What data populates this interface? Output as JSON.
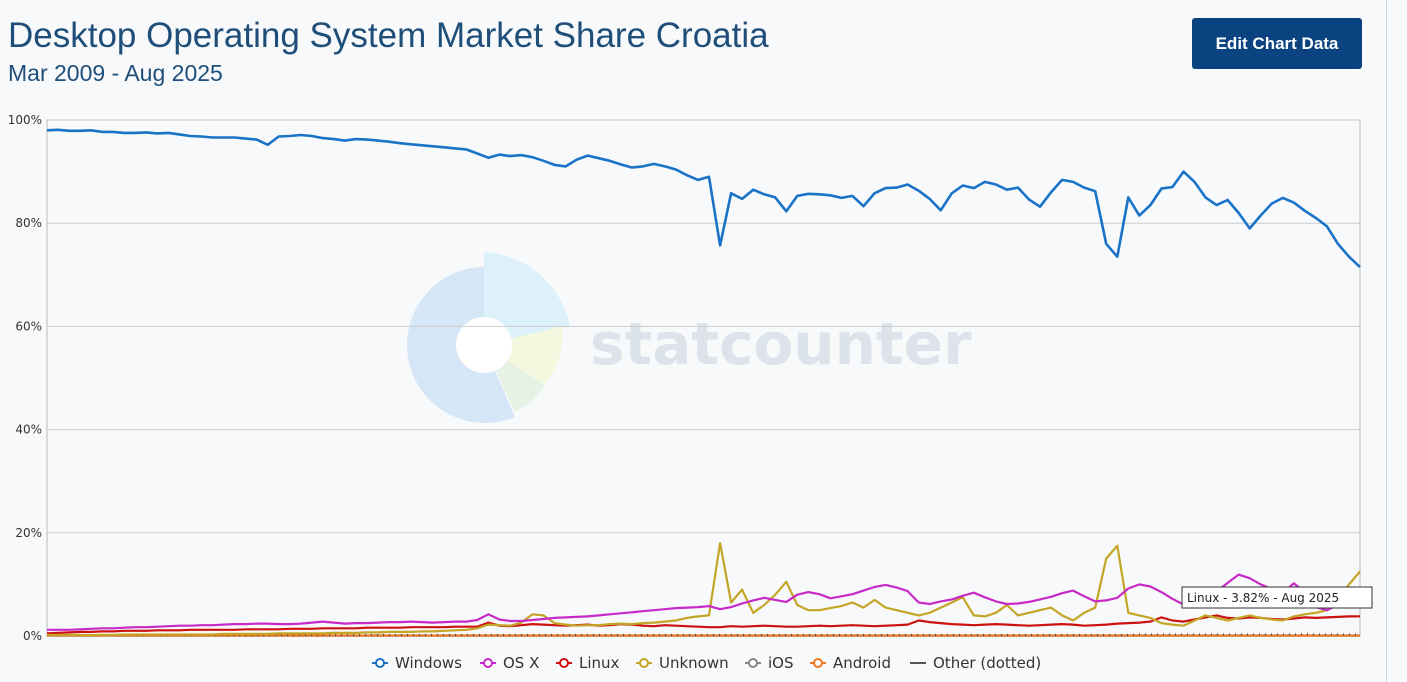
{
  "header": {
    "title": "Desktop Operating System Market Share Croatia",
    "subtitle": "Mar 2009 - Aug 2025",
    "edit_button": "Edit Chart Data"
  },
  "watermark": {
    "text": "statcounter"
  },
  "tooltip": {
    "text": "Linux - 3.82% - Aug 2025"
  },
  "colors": {
    "Windows": "#1a73c6",
    "OS X": "#c72ac7",
    "Linux": "#cc1111",
    "Unknown": "#c4a526",
    "iOS": "#888888",
    "Android": "#ee7722",
    "Other": "#555555"
  },
  "chart_data": {
    "type": "line",
    "title": "Desktop Operating System Market Share Croatia",
    "subtitle": "Mar 2009 - Aug 2025",
    "x_range": [
      "Mar 2009",
      "Aug 2025"
    ],
    "ylim": [
      0,
      100
    ],
    "yticks": [
      "0%",
      "20%",
      "40%",
      "60%",
      "80%",
      "100%"
    ],
    "grid": true,
    "legend_position": "bottom",
    "series": [
      {
        "name": "Windows",
        "values": [
          98.0,
          98.1,
          97.9,
          97.9,
          98.0,
          97.7,
          97.7,
          97.5,
          97.5,
          97.6,
          97.4,
          97.5,
          97.2,
          96.9,
          96.8,
          96.6,
          96.6,
          96.6,
          96.4,
          96.2,
          95.2,
          96.8,
          96.9,
          97.1,
          96.9,
          96.5,
          96.3,
          96.0,
          96.3,
          96.2,
          96.0,
          95.8,
          95.5,
          95.3,
          95.1,
          94.9,
          94.7,
          94.5,
          94.3,
          93.5,
          92.7,
          93.3,
          93.0,
          93.2,
          92.8,
          92.1,
          91.3,
          91.0,
          92.3,
          93.1,
          92.6,
          92.1,
          91.4,
          90.8,
          91.0,
          91.5,
          91.0,
          90.4,
          89.3,
          88.4,
          89.0,
          75.7,
          85.8,
          84.7,
          86.5,
          85.6,
          85.0,
          82.3,
          85.3,
          85.7,
          85.6,
          85.4,
          84.9,
          85.3,
          83.3,
          85.8,
          86.8,
          86.9,
          87.5,
          86.3,
          84.7,
          82.5,
          85.8,
          87.3,
          86.8,
          88.0,
          87.5,
          86.5,
          86.9,
          84.6,
          83.2,
          86.0,
          88.4,
          88.0,
          86.9,
          86.2,
          76.0,
          73.5,
          85.0,
          81.5,
          83.5,
          86.7,
          87.0,
          90.0,
          88.0,
          85.0,
          83.5,
          84.5,
          82.0,
          79.0,
          81.5,
          83.8,
          84.9,
          84.0,
          82.4,
          81.0,
          79.4,
          76.0,
          73.5,
          71.5
        ]
      },
      {
        "name": "OS X",
        "values": [
          1.2,
          1.2,
          1.2,
          1.3,
          1.4,
          1.5,
          1.5,
          1.6,
          1.7,
          1.7,
          1.8,
          1.9,
          2.0,
          2.0,
          2.1,
          2.1,
          2.2,
          2.3,
          2.3,
          2.4,
          2.4,
          2.3,
          2.3,
          2.4,
          2.6,
          2.8,
          2.6,
          2.4,
          2.5,
          2.5,
          2.6,
          2.7,
          2.7,
          2.8,
          2.7,
          2.6,
          2.7,
          2.8,
          2.8,
          3.1,
          4.2,
          3.2,
          2.9,
          2.9,
          3.1,
          3.3,
          3.5,
          3.6,
          3.7,
          3.8,
          4.0,
          4.2,
          4.4,
          4.6,
          4.8,
          5.0,
          5.2,
          5.4,
          5.5,
          5.6,
          5.8,
          5.2,
          5.6,
          6.3,
          6.9,
          7.4,
          7.0,
          6.6,
          8.0,
          8.5,
          8.1,
          7.3,
          7.7,
          8.1,
          8.8,
          9.5,
          9.9,
          9.4,
          8.7,
          6.5,
          6.2,
          6.7,
          7.1,
          7.8,
          8.4,
          7.5,
          6.7,
          6.2,
          6.3,
          6.6,
          7.1,
          7.6,
          8.3,
          8.8,
          7.7,
          6.7,
          6.9,
          7.4,
          9.2,
          10.0,
          9.6,
          8.5,
          7.2,
          6.1,
          6.9,
          7.4,
          8.6,
          10.3,
          11.9,
          11.2,
          10.0,
          9.1,
          8.4,
          10.2,
          8.5,
          5.6,
          5.0,
          6.0,
          7.5,
          8.9
        ]
      },
      {
        "name": "Linux",
        "values": [
          0.5,
          0.6,
          0.7,
          0.8,
          0.8,
          0.9,
          0.9,
          1.0,
          1.0,
          1.0,
          1.1,
          1.1,
          1.1,
          1.2,
          1.2,
          1.2,
          1.2,
          1.2,
          1.3,
          1.3,
          1.3,
          1.3,
          1.4,
          1.4,
          1.4,
          1.5,
          1.5,
          1.5,
          1.5,
          1.6,
          1.6,
          1.6,
          1.6,
          1.7,
          1.7,
          1.7,
          1.7,
          1.8,
          1.8,
          1.8,
          2.6,
          2.0,
          1.9,
          2.1,
          2.3,
          2.2,
          2.1,
          2.0,
          2.1,
          2.2,
          2.0,
          2.1,
          2.3,
          2.2,
          2.0,
          1.9,
          2.1,
          2.0,
          1.9,
          1.8,
          1.7,
          1.7,
          1.9,
          1.8,
          1.9,
          2.0,
          1.9,
          1.8,
          1.8,
          1.9,
          2.0,
          1.9,
          2.0,
          2.1,
          2.0,
          1.9,
          2.0,
          2.1,
          2.2,
          3.0,
          2.7,
          2.5,
          2.3,
          2.2,
          2.1,
          2.2,
          2.3,
          2.2,
          2.1,
          2.0,
          2.1,
          2.2,
          2.3,
          2.2,
          2.0,
          2.1,
          2.2,
          2.4,
          2.5,
          2.6,
          2.8,
          3.6,
          3.0,
          2.8,
          3.2,
          3.6,
          4.0,
          3.5,
          3.4,
          3.6,
          3.5,
          3.3,
          3.2,
          3.4,
          3.6,
          3.5,
          3.6,
          3.7,
          3.8,
          3.82
        ]
      },
      {
        "name": "Unknown",
        "values": [
          0.2,
          0.2,
          0.2,
          0.2,
          0.2,
          0.2,
          0.2,
          0.3,
          0.3,
          0.3,
          0.3,
          0.3,
          0.3,
          0.3,
          0.3,
          0.3,
          0.4,
          0.4,
          0.4,
          0.4,
          0.4,
          0.5,
          0.5,
          0.5,
          0.5,
          0.5,
          0.6,
          0.6,
          0.6,
          0.7,
          0.7,
          0.8,
          0.8,
          0.8,
          0.9,
          0.9,
          1.0,
          1.1,
          1.2,
          1.5,
          2.2,
          2.1,
          2.0,
          2.6,
          4.2,
          4.0,
          2.5,
          2.2,
          2.0,
          2.1,
          2.1,
          2.3,
          2.4,
          2.3,
          2.5,
          2.6,
          2.8,
          3.0,
          3.5,
          3.8,
          4.0,
          18.0,
          6.5,
          9.0,
          4.5,
          6.0,
          8.0,
          10.5,
          6.0,
          5.0,
          5.0,
          5.4,
          5.8,
          6.5,
          5.5,
          7.0,
          5.5,
          5.0,
          4.5,
          4.0,
          4.5,
          5.5,
          6.5,
          7.5,
          4.0,
          3.8,
          4.5,
          6.0,
          4.0,
          4.5,
          5.0,
          5.5,
          4.0,
          3.0,
          4.5,
          5.5,
          15.0,
          17.5,
          4.5,
          4.0,
          3.5,
          2.5,
          2.2,
          2.0,
          3.0,
          4.0,
          3.5,
          3.0,
          3.5,
          4.0,
          3.5,
          3.2,
          3.0,
          3.8,
          4.2,
          4.5,
          5.0,
          7.0,
          10.0,
          12.5
        ]
      },
      {
        "name": "iOS",
        "values": [
          0.05,
          0.05,
          0.05,
          0.05,
          0.05,
          0.05,
          0.05,
          0.05,
          0.05,
          0.05,
          0.05,
          0.05,
          0.05,
          0.05,
          0.05,
          0.05,
          0.05,
          0.05,
          0.05,
          0.05,
          0.05,
          0.05,
          0.05,
          0.05,
          0.05,
          0.05,
          0.05,
          0.05,
          0.05,
          0.05,
          0.05,
          0.05,
          0.05,
          0.05,
          0.05,
          0.05,
          0.05,
          0.05,
          0.05,
          0.05,
          0.05,
          0.05,
          0.05,
          0.05,
          0.05,
          0.05,
          0.05,
          0.05,
          0.05,
          0.05,
          0.05,
          0.05,
          0.05,
          0.05,
          0.05,
          0.05,
          0.05,
          0.05,
          0.05,
          0.05,
          0.05,
          0.05,
          0.05,
          0.05,
          0.05,
          0.05,
          0.05,
          0.05,
          0.05,
          0.05,
          0.05,
          0.05,
          0.05,
          0.05,
          0.05,
          0.05,
          0.05,
          0.05,
          0.05,
          0.05,
          0.05,
          0.05,
          0.05,
          0.05,
          0.05,
          0.05,
          0.05,
          0.05,
          0.05,
          0.05,
          0.05,
          0.05,
          0.05,
          0.05,
          0.05,
          0.05,
          0.05,
          0.05,
          0.05,
          0.05,
          0.05,
          0.05,
          0.05,
          0.05,
          0.05,
          0.05,
          0.05,
          0.05,
          0.05,
          0.05,
          0.05,
          0.05,
          0.05,
          0.05,
          0.05,
          0.05,
          0.05,
          0.05,
          0.05,
          0.05
        ]
      },
      {
        "name": "Android",
        "values": [
          0.1,
          0.1,
          0.1,
          0.1,
          0.1,
          0.1,
          0.1,
          0.1,
          0.1,
          0.1,
          0.1,
          0.1,
          0.1,
          0.1,
          0.1,
          0.1,
          0.1,
          0.1,
          0.1,
          0.1,
          0.1,
          0.1,
          0.1,
          0.1,
          0.1,
          0.1,
          0.1,
          0.1,
          0.1,
          0.1,
          0.1,
          0.1,
          0.1,
          0.1,
          0.1,
          0.1,
          0.1,
          0.1,
          0.1,
          0.1,
          0.1,
          0.1,
          0.1,
          0.1,
          0.1,
          0.1,
          0.1,
          0.1,
          0.1,
          0.1,
          0.1,
          0.1,
          0.1,
          0.1,
          0.1,
          0.1,
          0.1,
          0.1,
          0.1,
          0.1,
          0.1,
          0.1,
          0.1,
          0.1,
          0.1,
          0.1,
          0.1,
          0.1,
          0.1,
          0.1,
          0.1,
          0.1,
          0.1,
          0.1,
          0.1,
          0.1,
          0.1,
          0.1,
          0.1,
          0.1,
          0.1,
          0.1,
          0.1,
          0.1,
          0.1,
          0.1,
          0.1,
          0.1,
          0.1,
          0.1,
          0.1,
          0.1,
          0.1,
          0.1,
          0.1,
          0.1,
          0.1,
          0.1,
          0.1,
          0.1,
          0.1,
          0.1,
          0.1,
          0.1,
          0.1,
          0.1,
          0.1,
          0.1,
          0.1,
          0.1,
          0.1,
          0.1,
          0.1,
          0.1,
          0.1,
          0.1,
          0.1,
          0.1,
          0.1,
          0.1
        ]
      },
      {
        "name": "Other (dotted)",
        "values": [
          0.2,
          0.2,
          0.2,
          0.2,
          0.2,
          0.2,
          0.2,
          0.2,
          0.2,
          0.2,
          0.2,
          0.2,
          0.2,
          0.2,
          0.2,
          0.2,
          0.2,
          0.2,
          0.2,
          0.2,
          0.2,
          0.2,
          0.2,
          0.2,
          0.2,
          0.2,
          0.2,
          0.2,
          0.2,
          0.2,
          0.2,
          0.2,
          0.2,
          0.2,
          0.2,
          0.2,
          0.2,
          0.2,
          0.2,
          0.2,
          0.2,
          0.2,
          0.2,
          0.2,
          0.2,
          0.2,
          0.2,
          0.2,
          0.2,
          0.2,
          0.2,
          0.2,
          0.2,
          0.2,
          0.2,
          0.2,
          0.2,
          0.2,
          0.2,
          0.2,
          0.2,
          0.2,
          0.2,
          0.2,
          0.2,
          0.2,
          0.2,
          0.2,
          0.2,
          0.2,
          0.2,
          0.2,
          0.2,
          0.2,
          0.2,
          0.2,
          0.2,
          0.2,
          0.2,
          0.2,
          0.2,
          0.2,
          0.2,
          0.2,
          0.2,
          0.2,
          0.2,
          0.2,
          0.2,
          0.2,
          0.2,
          0.2,
          0.2,
          0.2,
          0.2,
          0.2,
          0.2,
          0.2,
          0.2,
          0.3,
          0.3,
          0.3,
          0.3,
          0.3,
          0.3,
          0.3,
          0.3,
          0.3,
          0.3,
          0.3,
          0.3,
          0.3,
          0.3,
          0.3,
          0.4,
          0.3,
          0.3,
          0.3,
          0.3,
          0.3
        ]
      }
    ]
  }
}
